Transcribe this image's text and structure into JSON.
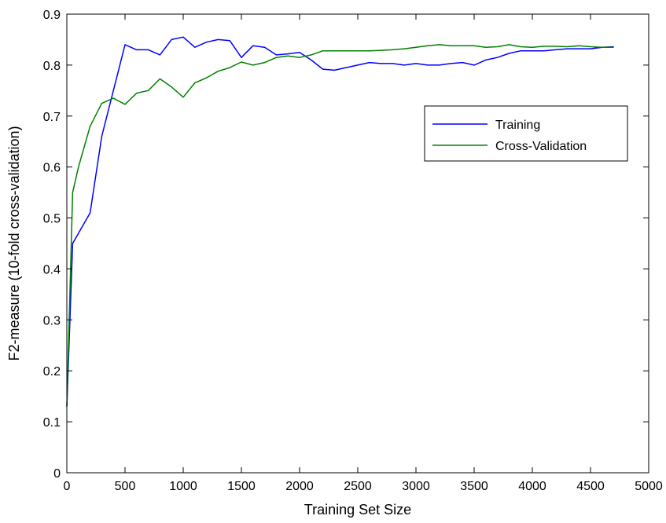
{
  "chart_data": {
    "type": "line",
    "title": "",
    "xlabel": "Training Set Size",
    "ylabel": "F2-measure (10-fold cross-validation)",
    "xlim": [
      0,
      5000
    ],
    "ylim": [
      0,
      0.9
    ],
    "xticks": [
      0,
      500,
      1000,
      1500,
      2000,
      2500,
      3000,
      3500,
      4000,
      4500,
      5000
    ],
    "yticks": [
      0,
      0.1,
      0.2,
      0.3,
      0.4,
      0.5,
      0.6,
      0.7,
      0.8,
      0.9
    ],
    "xtick_labels": [
      "0",
      "500",
      "1000",
      "1500",
      "2000",
      "2500",
      "3000",
      "3500",
      "4000",
      "4500",
      "5000"
    ],
    "ytick_labels": [
      "0",
      "0.1",
      "0.2",
      "0.3",
      "0.4",
      "0.5",
      "0.6",
      "0.7",
      "0.8",
      "0.9"
    ],
    "grid": false,
    "legend_position": "upper-right",
    "series": [
      {
        "name": "Training",
        "color": "#0000ff",
        "x": [
          0,
          50,
          100,
          200,
          300,
          400,
          500,
          600,
          700,
          800,
          900,
          1000,
          1100,
          1200,
          1300,
          1400,
          1500,
          1600,
          1700,
          1800,
          1900,
          2000,
          2100,
          2200,
          2300,
          2400,
          2500,
          2600,
          2700,
          2800,
          2900,
          3000,
          3100,
          3200,
          3300,
          3400,
          3500,
          3600,
          3700,
          3800,
          3900,
          4000,
          4100,
          4200,
          4300,
          4400,
          4500,
          4600,
          4700
        ],
        "y": [
          0.13,
          0.45,
          0.47,
          0.51,
          0.66,
          0.75,
          0.84,
          0.83,
          0.83,
          0.82,
          0.85,
          0.855,
          0.835,
          0.845,
          0.85,
          0.848,
          0.815,
          0.838,
          0.835,
          0.82,
          0.822,
          0.825,
          0.81,
          0.792,
          0.79,
          0.795,
          0.8,
          0.805,
          0.803,
          0.803,
          0.8,
          0.803,
          0.8,
          0.8,
          0.803,
          0.805,
          0.8,
          0.81,
          0.815,
          0.823,
          0.828,
          0.828,
          0.828,
          0.83,
          0.832,
          0.832,
          0.832,
          0.835,
          0.836
        ]
      },
      {
        "name": "Cross-Validation",
        "color": "#008000",
        "x": [
          0,
          50,
          100,
          200,
          300,
          400,
          500,
          600,
          700,
          800,
          900,
          1000,
          1100,
          1200,
          1300,
          1400,
          1500,
          1600,
          1700,
          1800,
          1900,
          2000,
          2100,
          2200,
          2300,
          2400,
          2500,
          2600,
          2700,
          2800,
          2900,
          3000,
          3100,
          3200,
          3300,
          3400,
          3500,
          3600,
          3700,
          3800,
          3900,
          4000,
          4100,
          4200,
          4300,
          4400,
          4500,
          4600,
          4700
        ],
        "y": [
          0.13,
          0.55,
          0.6,
          0.68,
          0.725,
          0.735,
          0.723,
          0.745,
          0.75,
          0.773,
          0.757,
          0.737,
          0.765,
          0.775,
          0.788,
          0.795,
          0.806,
          0.8,
          0.805,
          0.815,
          0.818,
          0.815,
          0.82,
          0.828,
          0.828,
          0.828,
          0.828,
          0.828,
          0.829,
          0.83,
          0.832,
          0.835,
          0.838,
          0.84,
          0.838,
          0.838,
          0.838,
          0.835,
          0.836,
          0.84,
          0.836,
          0.835,
          0.837,
          0.837,
          0.836,
          0.838,
          0.836,
          0.835,
          0.835
        ]
      }
    ]
  }
}
